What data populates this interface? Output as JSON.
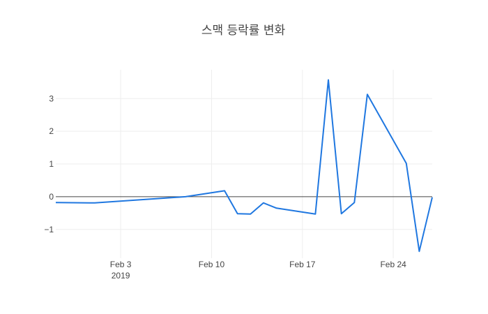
{
  "chart_data": {
    "type": "line",
    "title": "스맥 등락률 변화",
    "xlabel": "",
    "ylabel": "",
    "x_range": [
      "2019-01-29",
      "2019-02-27"
    ],
    "ylim": [
      -1.88,
      3.88
    ],
    "x_ticks": [
      {
        "date": "2019-02-03",
        "label": "Feb 3",
        "sublabel": "2019"
      },
      {
        "date": "2019-02-10",
        "label": "Feb 10",
        "sublabel": ""
      },
      {
        "date": "2019-02-17",
        "label": "Feb 17",
        "sublabel": ""
      },
      {
        "date": "2019-02-24",
        "label": "Feb 24",
        "sublabel": ""
      }
    ],
    "y_ticks": [
      {
        "value": -1,
        "label": "−1"
      },
      {
        "value": 0,
        "label": "0"
      },
      {
        "value": 1,
        "label": "1"
      },
      {
        "value": 2,
        "label": "2"
      },
      {
        "value": 3,
        "label": "3"
      }
    ],
    "grid": true,
    "zero_line": true,
    "line_color": "#1f77e0",
    "series": [
      {
        "x": [
          "2019-01-29",
          "2019-02-01",
          "2019-02-08",
          "2019-02-11",
          "2019-02-12",
          "2019-02-13",
          "2019-02-14",
          "2019-02-15",
          "2019-02-18",
          "2019-02-19",
          "2019-02-20",
          "2019-02-21",
          "2019-02-22",
          "2019-02-25",
          "2019-02-26",
          "2019-02-27"
        ],
        "y": [
          -0.18,
          -0.19,
          0.0,
          0.18,
          -0.52,
          -0.53,
          -0.19,
          -0.35,
          -0.53,
          3.57,
          -0.52,
          -0.18,
          3.13,
          1.02,
          -1.67,
          -0.02
        ]
      }
    ]
  }
}
